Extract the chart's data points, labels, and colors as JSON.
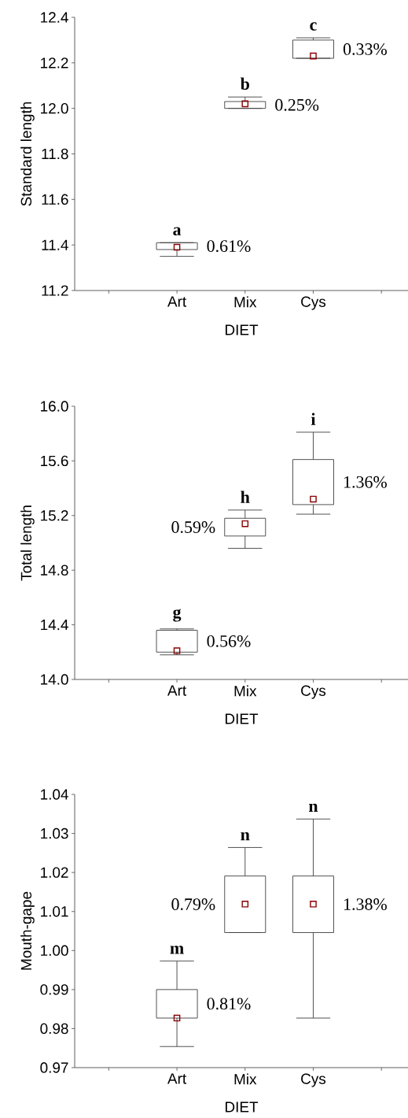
{
  "chart_data": [
    {
      "type": "box",
      "ylabel": "Standard length",
      "xlabel": "DIET",
      "categories": [
        "Art",
        "Mix",
        "Cys"
      ],
      "color": "#404040",
      "marker": "square",
      "boxes": [
        {
          "low": 11.35,
          "q1": 11.38,
          "median": 11.39,
          "q3": 11.41,
          "high": 11.41
        },
        {
          "low": 12.0,
          "q1": 12.0,
          "median": 12.02,
          "q3": 12.03,
          "high": 12.05
        },
        {
          "low": 12.22,
          "q1": 12.22,
          "median": 12.23,
          "q3": 12.3,
          "high": 12.31
        }
      ],
      "ylim": [
        11.2,
        12.4
      ],
      "yticks": [
        11.2,
        11.4,
        11.6,
        11.8,
        {
          "value": 12,
          "label": "12.0"
        },
        12.2,
        12.4
      ],
      "annotations": [
        "a",
        "b",
        "c",
        "0.61%",
        "0.25%",
        "0.33%"
      ]
    },
    {
      "type": "box",
      "ylabel": "Total length",
      "xlabel": "DIET",
      "categories": [
        "Art",
        "Mix",
        "Cys"
      ],
      "color": "#404040",
      "marker": "square",
      "boxes": [
        {
          "low": 14.18,
          "q1": 14.2,
          "median": 14.21,
          "q3": 14.36,
          "high": 14.37
        },
        {
          "low": 14.96,
          "q1": 15.05,
          "median": 15.14,
          "q3": 15.18,
          "high": 15.24
        },
        {
          "low": 15.21,
          "q1": 15.28,
          "median": 15.32,
          "q3": 15.61,
          "high": 15.81
        }
      ],
      "ylim": [
        14.0,
        16.0
      ],
      "yticks": [
        {
          "value": 14,
          "label": "14.0"
        },
        14.4,
        14.8,
        15.2,
        15.6,
        {
          "value": 16,
          "label": "16.0"
        }
      ],
      "annotations": [
        "g",
        "h",
        "i",
        "0.56%",
        "0.59%",
        "1.36%"
      ]
    },
    {
      "type": "box",
      "ylabel": "Mouth-gape",
      "xlabel": "DIET",
      "categories": [
        "Art",
        "Mix",
        "Cys"
      ],
      "color": "#404040",
      "marker": "square",
      "boxes": [
        {
          "low": 0.9754,
          "q1": 0.9827,
          "median": 0.9827,
          "q3": 0.99,
          "high": 0.9973,
          "mean": 0.9827
        },
        {
          "low": 1.0046,
          "q1": 1.0046,
          "median": 1.0119,
          "q3": 1.0191,
          "high": 1.0264
        },
        {
          "low": 0.9827,
          "q1": 1.0046,
          "median": 1.0119,
          "q3": 1.0191,
          "high": 1.0337
        }
      ],
      "ylim": [
        0.97,
        1.04
      ],
      "yticks": [
        0.97,
        0.98,
        0.99,
        {
          "value": 1,
          "label": "1.00"
        },
        1.01,
        1.02,
        1.03,
        1.04
      ],
      "annotations": [
        "m",
        "n",
        "n",
        "0.81%",
        "0.79%",
        "1.38%"
      ]
    }
  ]
}
